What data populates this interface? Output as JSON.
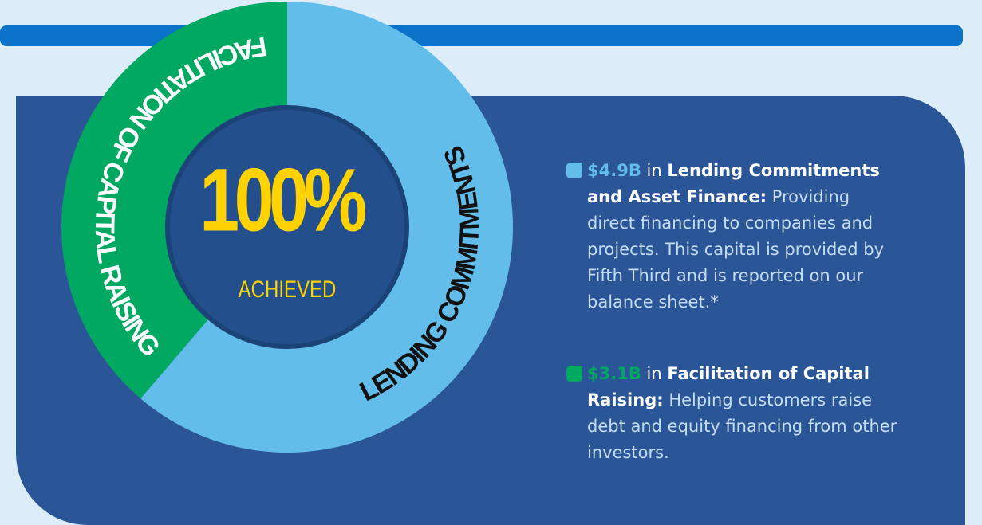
{
  "chart_data": {
    "type": "donut",
    "categories": [
      "LENDING COMMITMENTS",
      "FACILITATION OF CAPITAL RAISING"
    ],
    "values": [
      4.9,
      3.1
    ],
    "value_labels": [
      "$4.9B",
      "$3.1B"
    ],
    "colors": [
      "#63bdeb",
      "#00a862"
    ],
    "label_colors": [
      "#111111",
      "#ffffff"
    ],
    "center_label": "100%",
    "center_sublabel": "ACHIEVED",
    "legend": [
      {
        "connector": "in",
        "label": "Lending Commitments and Asset Finance:",
        "description": "Providing direct financing to companies and projects. This capital is provided by Fifth Third and is reported on our balance sheet.*"
      },
      {
        "connector": "in",
        "label": "Facilitation of Capital Raising:",
        "description": "Helping customers raise debt and equity financing from other investors."
      }
    ]
  }
}
